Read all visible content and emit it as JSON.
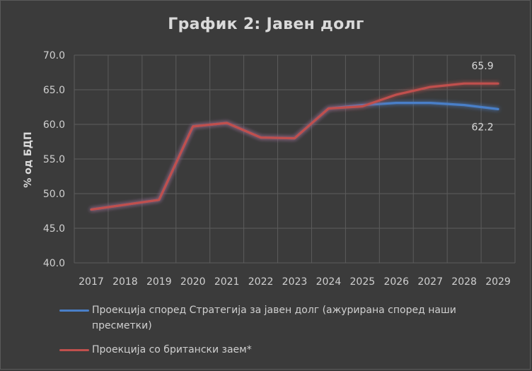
{
  "chart_data": {
    "type": "line",
    "title": "График 2: Јавен долг",
    "ylabel": "% од БДП",
    "xlabel": "",
    "ylim": [
      40,
      70
    ],
    "yticks": [
      "40.0",
      "45.0",
      "50.0",
      "55.0",
      "60.0",
      "65.0",
      "70.0"
    ],
    "categories": [
      "2017",
      "2018",
      "2019",
      "2020",
      "2021",
      "2022",
      "2023",
      "2024",
      "2025",
      "2026",
      "2027",
      "2028",
      "2029"
    ],
    "grid": true,
    "legend": "bottom",
    "series": [
      {
        "name": "Проекција според Стратегија за јавен долг (ажурирана според наши пресметки)",
        "color": "#4a7fc8",
        "values": [
          47.7,
          48.4,
          49.1,
          59.7,
          60.2,
          58.1,
          58.0,
          62.3,
          62.8,
          63.1,
          63.1,
          62.8,
          62.2
        ],
        "end_label": "62.2"
      },
      {
        "name": "Проекција со британски заем*",
        "color": "#c0504d",
        "values": [
          47.7,
          48.4,
          49.1,
          59.7,
          60.2,
          58.1,
          58.0,
          62.3,
          62.6,
          64.3,
          65.4,
          65.9,
          65.9
        ],
        "end_label": "65.9"
      }
    ]
  }
}
